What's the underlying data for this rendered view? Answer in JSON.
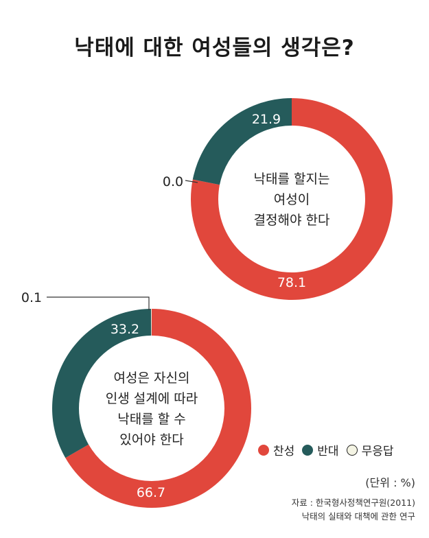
{
  "title": "낙태에 대한 여성들의 생각은?",
  "colors": {
    "agree": "#e1473c",
    "disagree": "#255b5b",
    "no_answer": "#f4f4e4"
  },
  "legend": [
    {
      "label": "찬성",
      "color": "#e1473c"
    },
    {
      "label": "반대",
      "color": "#255b5b"
    },
    {
      "label": "무응답",
      "color": "#f4f4e4"
    }
  ],
  "unit": "(단위 : %)",
  "source": {
    "line1": "자료 : 한국형사정책연구원(2011)",
    "line2": "낙태의 실태와 대책에 관한 연구"
  },
  "chart_data": [
    {
      "type": "donut",
      "center_label": [
        "낙태를 할지는",
        "여성이",
        "결정해야 한다"
      ],
      "categories": [
        "찬성",
        "반대",
        "무응답"
      ],
      "values": [
        78.1,
        21.9,
        0.0
      ],
      "labels": [
        "78.1",
        "21.9",
        "0.0"
      ]
    },
    {
      "type": "donut",
      "center_label": [
        "여성은 자신의",
        "인생 설계에 따라",
        "낙태를 할 수",
        "있어야 한다"
      ],
      "categories": [
        "찬성",
        "반대",
        "무응답"
      ],
      "values": [
        66.7,
        33.2,
        0.1
      ],
      "labels": [
        "66.7",
        "33.2",
        "0.1"
      ]
    }
  ]
}
